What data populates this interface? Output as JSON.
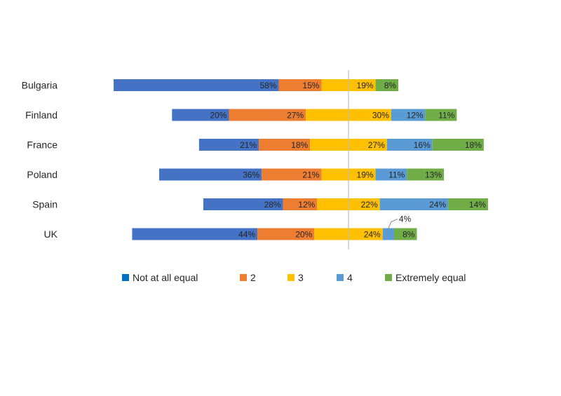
{
  "chart_data": {
    "type": "bar",
    "orientation": "horizontal",
    "stacked": true,
    "layout": "diverging",
    "title": "",
    "xlabel": "",
    "ylabel": "",
    "categories": [
      "Bulgaria",
      "Finland",
      "France",
      "Poland",
      "Spain",
      "UK"
    ],
    "series": [
      {
        "name": "Not at all equal",
        "color": "#4472C4",
        "values": [
          58,
          20,
          21,
          36,
          28,
          44
        ]
      },
      {
        "name": "2",
        "color": "#ED7D31",
        "values": [
          15,
          27,
          18,
          21,
          12,
          20
        ]
      },
      {
        "name": "3",
        "color": "#FFC000",
        "values": [
          19,
          30,
          27,
          19,
          22,
          24
        ]
      },
      {
        "name": "4",
        "color": "#5B9BD5",
        "values": [
          0,
          12,
          16,
          11,
          24,
          4
        ]
      },
      {
        "name": "Extremely equal",
        "color": "#70AD47",
        "values": [
          8,
          11,
          18,
          13,
          14,
          8
        ]
      }
    ],
    "labels": [
      [
        "58%",
        "15%",
        "19%",
        "",
        "8%"
      ],
      [
        "20%",
        "27%",
        "30%",
        "12%",
        "11%"
      ],
      [
        "21%",
        "18%",
        "27%",
        "16%",
        "18%"
      ],
      [
        "36%",
        "21%",
        "19%",
        "11%",
        "13%"
      ],
      [
        "28%",
        "12%",
        "22%",
        "24%",
        "14%"
      ],
      [
        "44%",
        "20%",
        "24%",
        "4%",
        "8%"
      ]
    ],
    "callouts": [
      {
        "category": "UK",
        "series": "4",
        "label": "4%"
      }
    ],
    "center_line": true,
    "legend": {
      "position": "bottom",
      "colors": [
        "#0070C0",
        "#ED7D31",
        "#FFC000",
        "#5B9BD5",
        "#70AD47"
      ]
    },
    "grid": false
  }
}
